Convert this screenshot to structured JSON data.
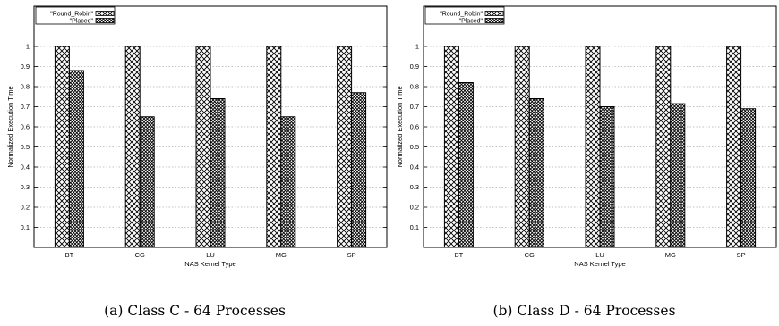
{
  "chart_data": [
    {
      "type": "bar",
      "caption": "(a) Class C - 64 Processes",
      "xlabel": "NAS Kernel Type",
      "ylabel": "Normalized Execution Time",
      "categories": [
        "BT",
        "CG",
        "LU",
        "MG",
        "SP"
      ],
      "series": [
        {
          "name": "\"Round_Robin\"",
          "values": [
            1,
            1,
            1,
            1,
            1
          ]
        },
        {
          "name": "\"Placed\"",
          "values": [
            0.88,
            0.65,
            0.74,
            0.65,
            0.77
          ]
        }
      ],
      "yticks": [
        "0.1",
        "0.2",
        "0.3",
        "0.4",
        "0.5",
        "0.6",
        "0.7",
        "0.8",
        "0.9",
        "1"
      ],
      "ylim": [
        0,
        1.2
      ],
      "grid": true,
      "legend": "top-left"
    },
    {
      "type": "bar",
      "caption": "(b) Class D - 64 Processes",
      "xlabel": "NAS Kernel Type",
      "ylabel": "Normalized Execution Time",
      "categories": [
        "BT",
        "CG",
        "LU",
        "MG",
        "SP"
      ],
      "series": [
        {
          "name": "\"Round_Robin\"",
          "values": [
            1,
            1,
            1,
            1,
            1
          ]
        },
        {
          "name": "\"Placed\"",
          "values": [
            0.82,
            0.74,
            0.7,
            0.715,
            0.69
          ]
        }
      ],
      "yticks": [
        "0.1",
        "0.2",
        "0.3",
        "0.4",
        "0.5",
        "0.6",
        "0.7",
        "0.8",
        "0.9",
        "1"
      ],
      "ylim": [
        0,
        1.2
      ],
      "grid": true,
      "legend": "top-left"
    }
  ]
}
